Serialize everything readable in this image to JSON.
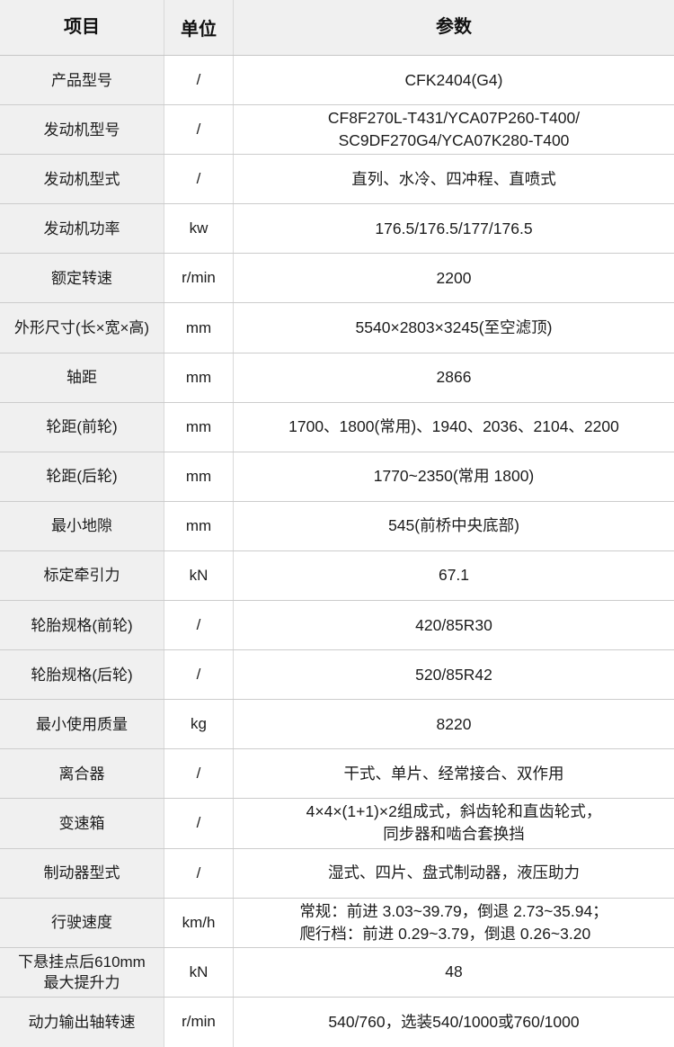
{
  "colors": {
    "header_background": "#f0f0f0",
    "item_column_background": "#f0f0f0",
    "row_border": "#cccccc",
    "column_border": "#d9d9d9",
    "text": "#1c1c1c"
  },
  "table": {
    "headers": [
      "项目",
      "单位",
      "参数"
    ],
    "rows": [
      {
        "item": "产品型号",
        "unit": "/",
        "value": [
          "CFK2404(G4)"
        ]
      },
      {
        "item": "发动机型号",
        "unit": "/",
        "value": [
          "CF8F270L-T431/YCA07P260-T400/",
          "SC9DF270G4/YCA07K280-T400"
        ]
      },
      {
        "item": "发动机型式",
        "unit": "/",
        "value": [
          "直列、水冷、四冲程、直喷式"
        ]
      },
      {
        "item": "发动机功率",
        "unit": "kw",
        "value": [
          "176.5/176.5/177/176.5"
        ]
      },
      {
        "item": "额定转速",
        "unit": "r/min",
        "value": [
          "2200"
        ]
      },
      {
        "item": "外形尺寸(长×宽×高)",
        "unit": "mm",
        "value": [
          "5540×2803×3245(至空滤顶)"
        ]
      },
      {
        "item": "轴距",
        "unit": "mm",
        "value": [
          "2866"
        ]
      },
      {
        "item": "轮距(前轮)",
        "unit": "mm",
        "value": [
          "1700、1800(常用)、1940、2036、2104、2200"
        ]
      },
      {
        "item": "轮距(后轮)",
        "unit": "mm",
        "value": [
          "1770~2350(常用 1800)"
        ]
      },
      {
        "item": "最小地隙",
        "unit": "mm",
        "value": [
          "545(前桥中央底部)"
        ]
      },
      {
        "item": "标定牵引力",
        "unit": "kN",
        "value": [
          "67.1"
        ]
      },
      {
        "item": "轮胎规格(前轮)",
        "unit": "/",
        "value": [
          "420/85R30"
        ]
      },
      {
        "item": "轮胎规格(后轮)",
        "unit": "/",
        "value": [
          "520/85R42"
        ]
      },
      {
        "item": "最小使用质量",
        "unit": "kg",
        "value": [
          "8220"
        ]
      },
      {
        "item": "离合器",
        "unit": "/",
        "value": [
          "干式、单片、经常接合、双作用"
        ]
      },
      {
        "item": "变速箱",
        "unit": "/",
        "value": [
          "4×4×(1+1)×2组成式，斜齿轮和直齿轮式，",
          "同步器和啮合套换挡"
        ]
      },
      {
        "item": "制动器型式",
        "unit": "/",
        "value": [
          "湿式、四片、盘式制动器，液压助力"
        ]
      },
      {
        "item": "行驶速度",
        "unit": "km/h",
        "value": [
          "常规：前进 3.03~39.79，倒退 2.73~35.94；",
          "爬行档：前进 0.29~3.79，倒退 0.26~3.20"
        ],
        "value_align": "left"
      },
      {
        "item": [
          "下悬挂点后610mm",
          "最大提升力"
        ],
        "unit": "kN",
        "value": [
          "48"
        ]
      },
      {
        "item": "动力输出轴转速",
        "unit": "r/min",
        "value": [
          "540/760，选装540/1000或760/1000"
        ]
      }
    ]
  }
}
